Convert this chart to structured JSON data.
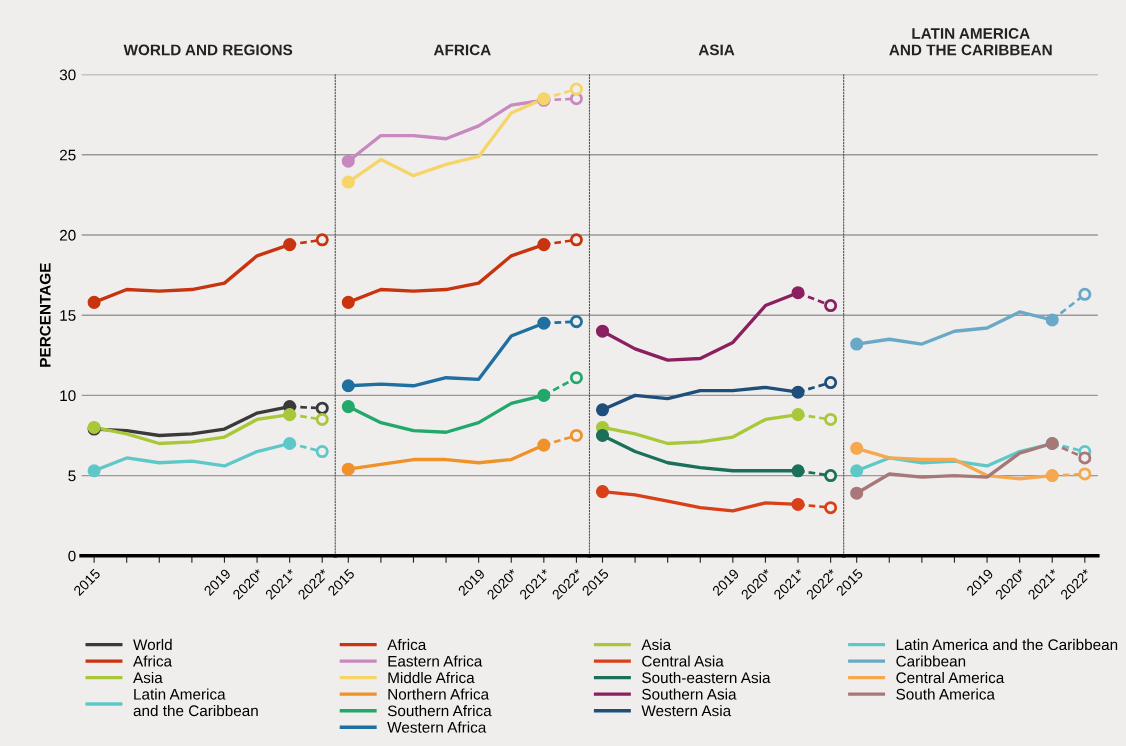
{
  "chart_data": [
    {
      "type": "line",
      "title": "WORLD AND REGIONS",
      "ylabel": "PERCENTAGE",
      "xlim": [
        2014.6,
        2022.4
      ],
      "ylim": [
        0,
        30
      ],
      "yticks": [
        0,
        5,
        10,
        15,
        20,
        25,
        30
      ],
      "xticks": [
        2015,
        {
          "value": 2016,
          "label": null
        },
        {
          "value": 2017,
          "label": null
        },
        {
          "value": 2018,
          "label": null
        },
        2019,
        {
          "value": 2020,
          "label": "2020*"
        },
        {
          "value": 2021,
          "label": "2021*"
        },
        {
          "value": 2022,
          "label": "2022*"
        }
      ],
      "grid": "y",
      "legend": "bottom",
      "series": [
        {
          "name": "World",
          "color": "#3a3a3a",
          "x": [
            2015,
            2016,
            2017,
            2018,
            2019,
            2020,
            2021
          ],
          "values": [
            7.9,
            7.8,
            7.5,
            7.6,
            7.9,
            8.9,
            9.3
          ]
        },
        {
          "color": "#3a3a3a",
          "line_style": "dashed",
          "x": [
            2021,
            2022
          ],
          "values": [
            9.3,
            9.2
          ]
        },
        {
          "name": "Africa",
          "color": "#c8340f",
          "x": [
            2015,
            2016,
            2017,
            2018,
            2019,
            2020,
            2021
          ],
          "values": [
            15.8,
            16.6,
            16.5,
            16.6,
            17.0,
            18.7,
            19.4
          ]
        },
        {
          "color": "#c8340f",
          "line_style": "dashed",
          "x": [
            2021,
            2022
          ],
          "values": [
            19.4,
            19.7
          ]
        },
        {
          "name": "Asia",
          "color": "#a8c83a",
          "x": [
            2015,
            2016,
            2017,
            2018,
            2019,
            2020,
            2021
          ],
          "values": [
            8.0,
            7.6,
            7.0,
            7.1,
            7.4,
            8.5,
            8.8
          ]
        },
        {
          "color": "#a8c83a",
          "line_style": "dashed",
          "x": [
            2021,
            2022
          ],
          "values": [
            8.8,
            8.5
          ]
        },
        {
          "name": "Latin America\nand the Caribbean",
          "color": "#5ec8c8",
          "x": [
            2015,
            2016,
            2017,
            2018,
            2019,
            2020,
            2021
          ],
          "values": [
            5.3,
            6.1,
            5.8,
            5.9,
            5.6,
            6.5,
            7.0
          ]
        },
        {
          "color": "#5ec8c8",
          "line_style": "dashed",
          "x": [
            2021,
            2022
          ],
          "values": [
            7.0,
            6.5
          ]
        }
      ]
    },
    {
      "type": "line",
      "title": "AFRICA",
      "xlim": [
        2014.6,
        2022.4
      ],
      "ylim": [
        0,
        30
      ],
      "yticks": [
        0,
        5,
        10,
        15,
        20,
        25,
        30
      ],
      "tick_labels": "x",
      "xticks": [
        2015,
        {
          "value": 2016,
          "label": null
        },
        {
          "value": 2017,
          "label": null
        },
        {
          "value": 2018,
          "label": null
        },
        2019,
        {
          "value": 2020,
          "label": "2020*"
        },
        {
          "value": 2021,
          "label": "2021*"
        },
        {
          "value": 2022,
          "label": "2022*"
        }
      ],
      "grid": "y",
      "legend": "bottom",
      "series": [
        {
          "name": "Africa",
          "color": "#c8340f",
          "x": [
            2015,
            2016,
            2017,
            2018,
            2019,
            2020,
            2021
          ],
          "values": [
            15.8,
            16.6,
            16.5,
            16.6,
            17.0,
            18.7,
            19.4
          ]
        },
        {
          "color": "#c8340f",
          "line_style": "dashed",
          "x": [
            2021,
            2022
          ],
          "values": [
            19.4,
            19.7
          ]
        },
        {
          "name": "Eastern Africa",
          "color": "#c888c0",
          "x": [
            2015,
            2016,
            2017,
            2018,
            2019,
            2020,
            2021
          ],
          "values": [
            24.6,
            26.2,
            26.2,
            26.0,
            26.8,
            28.1,
            28.4
          ]
        },
        {
          "color": "#c888c0",
          "line_style": "dashed",
          "x": [
            2021,
            2022
          ],
          "values": [
            28.4,
            28.5
          ]
        },
        {
          "name": "Middle Africa",
          "color": "#f5d56a",
          "x": [
            2015,
            2016,
            2017,
            2018,
            2019,
            2020,
            2021
          ],
          "values": [
            23.3,
            24.7,
            23.7,
            24.4,
            24.9,
            27.6,
            28.5
          ]
        },
        {
          "color": "#f5d56a",
          "line_style": "dashed",
          "x": [
            2021,
            2022
          ],
          "values": [
            28.5,
            29.1
          ]
        },
        {
          "name": "Northern Africa",
          "color": "#f0922a",
          "x": [
            2015,
            2016,
            2017,
            2018,
            2019,
            2020,
            2021
          ],
          "values": [
            5.4,
            5.7,
            6.0,
            6.0,
            5.8,
            6.0,
            6.9
          ]
        },
        {
          "color": "#f0922a",
          "line_style": "dashed",
          "x": [
            2021,
            2022
          ],
          "values": [
            6.9,
            7.5
          ]
        },
        {
          "name": "Southern Africa",
          "color": "#22a86a",
          "x": [
            2015,
            2016,
            2017,
            2018,
            2019,
            2020,
            2021
          ],
          "values": [
            9.3,
            8.3,
            7.8,
            7.7,
            8.3,
            9.5,
            10.0
          ]
        },
        {
          "color": "#22a86a",
          "line_style": "dashed",
          "x": [
            2021,
            2022
          ],
          "values": [
            10.0,
            11.1
          ]
        },
        {
          "name": "Western Africa",
          "color": "#1f6fa0",
          "x": [
            2015,
            2016,
            2017,
            2018,
            2019,
            2020,
            2021
          ],
          "values": [
            10.6,
            10.7,
            10.6,
            11.1,
            11.0,
            13.7,
            14.5
          ]
        },
        {
          "color": "#1f6fa0",
          "line_style": "dashed",
          "x": [
            2021,
            2022
          ],
          "values": [
            14.5,
            14.6
          ]
        }
      ]
    },
    {
      "type": "line",
      "title": "ASIA",
      "xlim": [
        2014.6,
        2022.4
      ],
      "ylim": [
        0,
        30
      ],
      "yticks": [
        0,
        5,
        10,
        15,
        20,
        25,
        30
      ],
      "tick_labels": "x",
      "xticks": [
        2015,
        {
          "value": 2016,
          "label": null
        },
        {
          "value": 2017,
          "label": null
        },
        {
          "value": 2018,
          "label": null
        },
        2019,
        {
          "value": 2020,
          "label": "2020*"
        },
        {
          "value": 2021,
          "label": "2021*"
        },
        {
          "value": 2022,
          "label": "2022*"
        }
      ],
      "grid": "y",
      "legend": "bottom",
      "series": [
        {
          "name": "Asia",
          "color": "#a8c83a",
          "x": [
            2015,
            2016,
            2017,
            2018,
            2019,
            2020,
            2021
          ],
          "values": [
            8.0,
            7.6,
            7.0,
            7.1,
            7.4,
            8.5,
            8.8
          ]
        },
        {
          "color": "#a8c83a",
          "line_style": "dashed",
          "x": [
            2021,
            2022
          ],
          "values": [
            8.8,
            8.5
          ]
        },
        {
          "name": "Central Asia",
          "color": "#d8401a",
          "x": [
            2015,
            2016,
            2017,
            2018,
            2019,
            2020,
            2021
          ],
          "values": [
            4.0,
            3.8,
            3.4,
            3.0,
            2.8,
            3.3,
            3.2
          ]
        },
        {
          "color": "#d8401a",
          "line_style": "dashed",
          "x": [
            2021,
            2022
          ],
          "values": [
            3.2,
            3.0
          ]
        },
        {
          "name": "South-eastern Asia",
          "color": "#1a7058",
          "x": [
            2015,
            2016,
            2017,
            2018,
            2019,
            2020,
            2021
          ],
          "values": [
            7.5,
            6.5,
            5.8,
            5.5,
            5.3,
            5.3,
            5.3
          ]
        },
        {
          "color": "#1a7058",
          "line_style": "dashed",
          "x": [
            2021,
            2022
          ],
          "values": [
            5.3,
            5.0
          ]
        },
        {
          "name": "Southern Asia",
          "color": "#8a2060",
          "x": [
            2015,
            2016,
            2017,
            2018,
            2019,
            2020,
            2021
          ],
          "values": [
            14.0,
            12.9,
            12.2,
            12.3,
            13.3,
            15.6,
            16.4
          ]
        },
        {
          "color": "#8a2060",
          "line_style": "dashed",
          "x": [
            2021,
            2022
          ],
          "values": [
            16.4,
            15.6
          ]
        },
        {
          "name": "Western Asia",
          "color": "#1f4e7a",
          "x": [
            2015,
            2016,
            2017,
            2018,
            2019,
            2020,
            2021
          ],
          "values": [
            9.1,
            10.0,
            9.8,
            10.3,
            10.3,
            10.5,
            10.2
          ]
        },
        {
          "color": "#1f4e7a",
          "line_style": "dashed",
          "x": [
            2021,
            2022
          ],
          "values": [
            10.2,
            10.8
          ]
        }
      ]
    },
    {
      "type": "line",
      "title": "LATIN AMERICA\nAND THE CARIBBEAN",
      "xlim": [
        2014.6,
        2022.4
      ],
      "ylim": [
        0,
        30
      ],
      "yticks": [
        0,
        5,
        10,
        15,
        20,
        25,
        30
      ],
      "tick_labels": "x",
      "xticks": [
        2015,
        {
          "value": 2016,
          "label": null
        },
        {
          "value": 2017,
          "label": null
        },
        {
          "value": 2018,
          "label": null
        },
        2019,
        {
          "value": 2020,
          "label": "2020*"
        },
        {
          "value": 2021,
          "label": "2021*"
        },
        {
          "value": 2022,
          "label": "2022*"
        }
      ],
      "grid": "y",
      "legend": "bottom",
      "series": [
        {
          "name": "Latin America and the Caribbean",
          "color": "#5ec8c8",
          "x": [
            2015,
            2016,
            2017,
            2018,
            2019,
            2020,
            2021
          ],
          "values": [
            5.3,
            6.1,
            5.8,
            5.9,
            5.6,
            6.5,
            7.0
          ]
        },
        {
          "color": "#5ec8c8",
          "line_style": "dashed",
          "x": [
            2021,
            2022
          ],
          "values": [
            7.0,
            6.5
          ]
        },
        {
          "name": "Caribbean",
          "color": "#6aa8c8",
          "x": [
            2015,
            2016,
            2017,
            2018,
            2019,
            2020,
            2021
          ],
          "values": [
            13.2,
            13.5,
            13.2,
            14.0,
            14.2,
            15.2,
            14.7
          ]
        },
        {
          "color": "#6aa8c8",
          "line_style": "dashed",
          "x": [
            2021,
            2022
          ],
          "values": [
            14.7,
            16.3
          ]
        },
        {
          "name": "Central America",
          "color": "#f5a850",
          "x": [
            2015,
            2016,
            2017,
            2018,
            2019,
            2020,
            2021
          ],
          "values": [
            6.7,
            6.1,
            6.0,
            6.0,
            5.0,
            4.8,
            5.0
          ]
        },
        {
          "color": "#f5a850",
          "line_style": "dashed",
          "x": [
            2021,
            2022
          ],
          "values": [
            5.0,
            5.1
          ]
        },
        {
          "name": "South America",
          "color": "#a87878",
          "x": [
            2015,
            2016,
            2017,
            2018,
            2019,
            2020,
            2021
          ],
          "values": [
            3.9,
            5.1,
            4.9,
            5.0,
            4.9,
            6.4,
            7.0
          ]
        },
        {
          "color": "#a87878",
          "line_style": "dashed",
          "x": [
            2021,
            2022
          ],
          "values": [
            7.0,
            6.1
          ]
        }
      ]
    }
  ]
}
